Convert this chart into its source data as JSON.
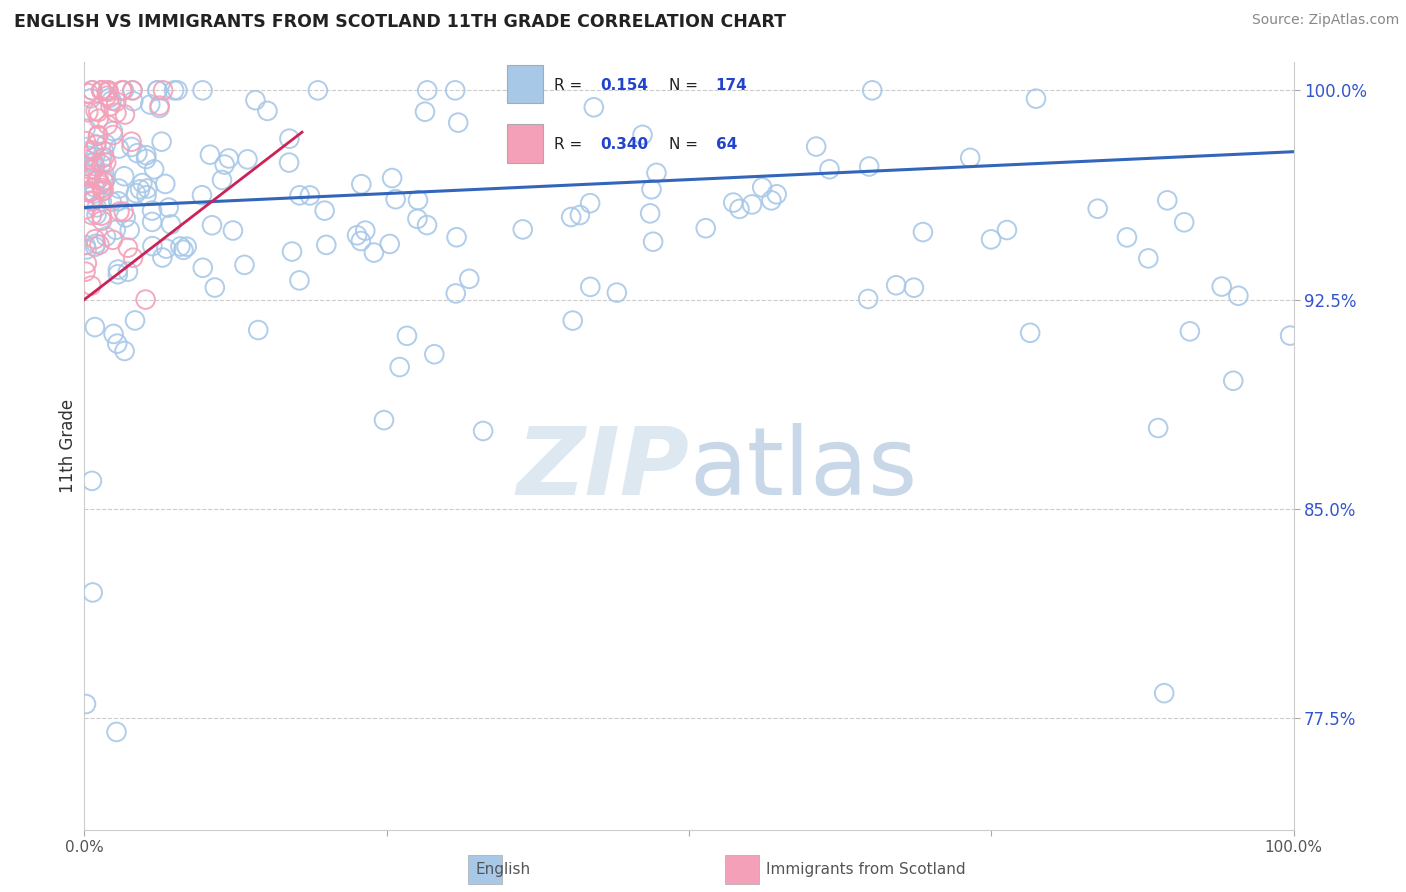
{
  "title": "ENGLISH VS IMMIGRANTS FROM SCOTLAND 11TH GRADE CORRELATION CHART",
  "source_text": "Source: ZipAtlas.com",
  "ylabel": "11th Grade",
  "legend_blue_label": "English",
  "legend_pink_label": "Immigrants from Scotland",
  "R_blue": 0.154,
  "N_blue": 174,
  "R_pink": 0.34,
  "N_pink": 64,
  "blue_color": "#a8c8e8",
  "pink_color": "#f4a0b8",
  "trend_line_blue_color": "#3366bb",
  "trend_line_pink_color": "#cc2255",
  "watermark_color": "#dde8f0",
  "legend_R_N_color": "#2244cc",
  "xlim": [
    0.0,
    1.0
  ],
  "ylim": [
    0.735,
    1.01
  ],
  "right_ytick_vals": [
    0.775,
    0.85,
    0.925,
    1.0
  ],
  "right_ytick_labels": [
    "77.5%",
    "85.0%",
    "92.5%",
    "100.0%"
  ],
  "grid_ytick_vals": [
    0.775,
    0.85,
    0.925,
    1.0
  ]
}
